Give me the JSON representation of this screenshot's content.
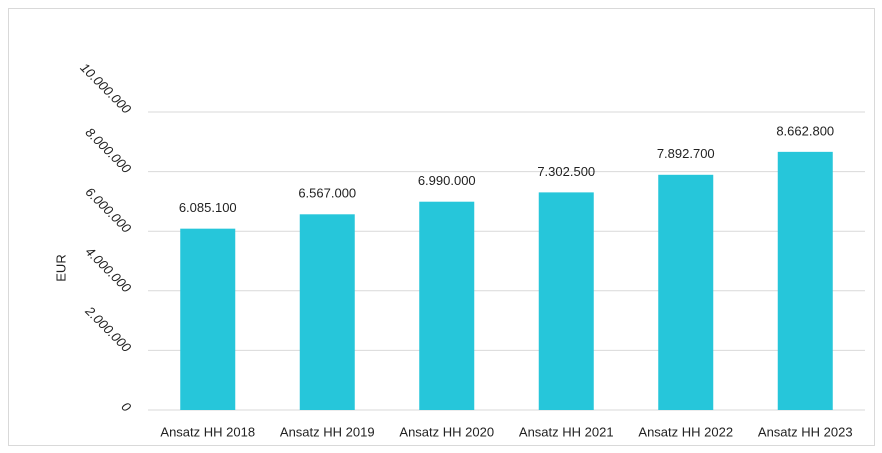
{
  "chart_data": {
    "type": "bar",
    "y_label": "EUR",
    "categories": [
      "Ansatz HH 2018",
      "Ansatz HH 2019",
      "Ansatz HH 2020",
      "Ansatz HH 2021",
      "Ansatz HH 2022",
      "Ansatz HH 2023"
    ],
    "values": [
      6085100,
      6567000,
      6990000,
      7302500,
      7892700,
      8662800
    ],
    "value_labels": [
      "6.085.100",
      "6.567.000",
      "6.990.000",
      "7.302.500",
      "7.892.700",
      "8.662.800"
    ],
    "color": "#26c6da",
    "ylim": [
      0,
      10000000
    ],
    "yticks": [
      0,
      {
        "value": 2000000,
        "label": "2.000.000"
      },
      {
        "value": 4000000,
        "label": "4.000.000"
      },
      {
        "value": 6000000,
        "label": "6.000.000"
      },
      {
        "value": 8000000,
        "label": "8.000.000"
      },
      {
        "value": 10000000,
        "label": "10.000.000"
      }
    ],
    "grid": true
  }
}
